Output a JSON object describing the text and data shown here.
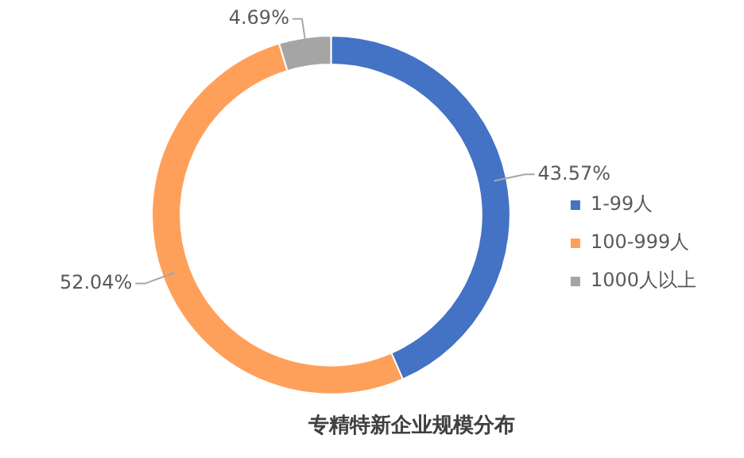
{
  "chart_data": {
    "type": "donut",
    "title": "专精特新企业规模分布",
    "categories": [
      "1-99人",
      "100-999人",
      "1000人以上"
    ],
    "values": [
      43.57,
      52.04,
      4.69
    ],
    "colors": [
      "#4472c4",
      "#ffa05a",
      "#a5a5a5"
    ],
    "value_labels": [
      "43.57%",
      "52.04%",
      "4.69%"
    ],
    "legend": "right"
  }
}
